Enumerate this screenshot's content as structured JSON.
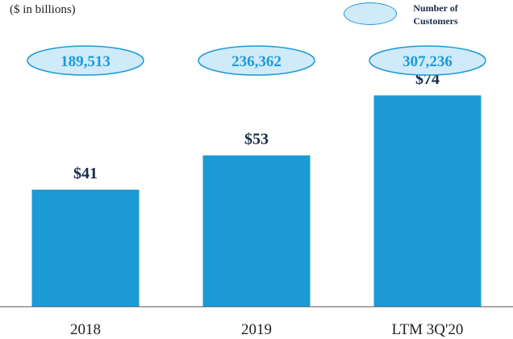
{
  "unit_label": "($ in billions)",
  "legend": {
    "label": "Number of\nCustomers",
    "color": "#cfeaf9",
    "border": "#1b9ad6"
  },
  "colors": {
    "bar": "#1b9ad6",
    "bubble_fill": "#cfeaf9",
    "bubble_border": "#1b9ad6",
    "bubble_text": "#1b9ad6",
    "value_text": "#1a2a4a",
    "axis": "#555555"
  },
  "chart_data": {
    "type": "bar",
    "categories": [
      "2018",
      "2019",
      "LTM 3Q'20"
    ],
    "series": [
      {
        "values": [
          41,
          53,
          74
        ],
        "value_labels": [
          "$41",
          "$53",
          "$74"
        ]
      }
    ],
    "customers": {
      "values": [
        189513,
        236362,
        307236
      ],
      "labels": [
        "189,513",
        "236,362",
        "307,236"
      ]
    },
    "ylim": [
      0,
      80
    ],
    "grid": false,
    "legend_position": "top-right"
  }
}
